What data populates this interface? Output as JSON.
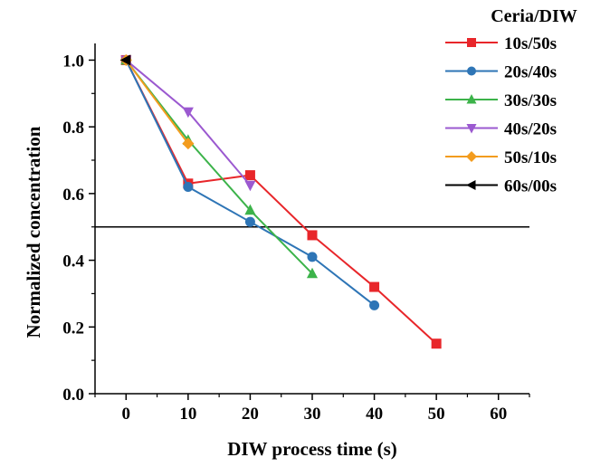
{
  "chart_data": {
    "type": "line",
    "title": "",
    "xlabel": "DIW process time (s)",
    "ylabel": "Normalized concentration",
    "xlim": [
      -5,
      65
    ],
    "ylim": [
      0,
      1.05
    ],
    "x_ticks": [
      0,
      10,
      20,
      30,
      40,
      50,
      60
    ],
    "y_ticks": [
      0.0,
      0.2,
      0.4,
      0.6,
      0.8,
      1.0
    ],
    "x_tick_labels": [
      "0",
      "10",
      "20",
      "30",
      "40",
      "50",
      "60"
    ],
    "y_tick_labels": [
      "0.0",
      "0.2",
      "0.4",
      "0.6",
      "0.8",
      "1.0"
    ],
    "reference_line": {
      "y": 0.5,
      "color": "#000000"
    },
    "grid": false,
    "legend": {
      "title": "Ceria/DIW",
      "placement": "top-right"
    },
    "series": [
      {
        "name": "10s/50s",
        "color": "#e8262a",
        "marker": "square",
        "x": [
          0,
          10,
          20,
          30,
          40,
          50
        ],
        "y": [
          1.0,
          0.63,
          0.655,
          0.475,
          0.32,
          0.15
        ]
      },
      {
        "name": "20s/40s",
        "color": "#2e75b6",
        "marker": "circle",
        "x": [
          0,
          10,
          20,
          30,
          40
        ],
        "y": [
          1.0,
          0.62,
          0.515,
          0.41,
          0.265
        ]
      },
      {
        "name": "30s/30s",
        "color": "#3cb34a",
        "marker": "triangle-up",
        "x": [
          0,
          10,
          20,
          30
        ],
        "y": [
          1.0,
          0.76,
          0.55,
          0.36
        ]
      },
      {
        "name": "40s/20s",
        "color": "#9b59d0",
        "marker": "triangle-down",
        "x": [
          0,
          10,
          20
        ],
        "y": [
          1.0,
          0.845,
          0.625
        ]
      },
      {
        "name": "50s/10s",
        "color": "#f39c1e",
        "marker": "diamond",
        "x": [
          0,
          10
        ],
        "y": [
          1.0,
          0.75
        ]
      },
      {
        "name": "60s/00s",
        "color": "#000000",
        "marker": "triangle-left",
        "x": [
          0
        ],
        "y": [
          1.0
        ]
      }
    ]
  }
}
